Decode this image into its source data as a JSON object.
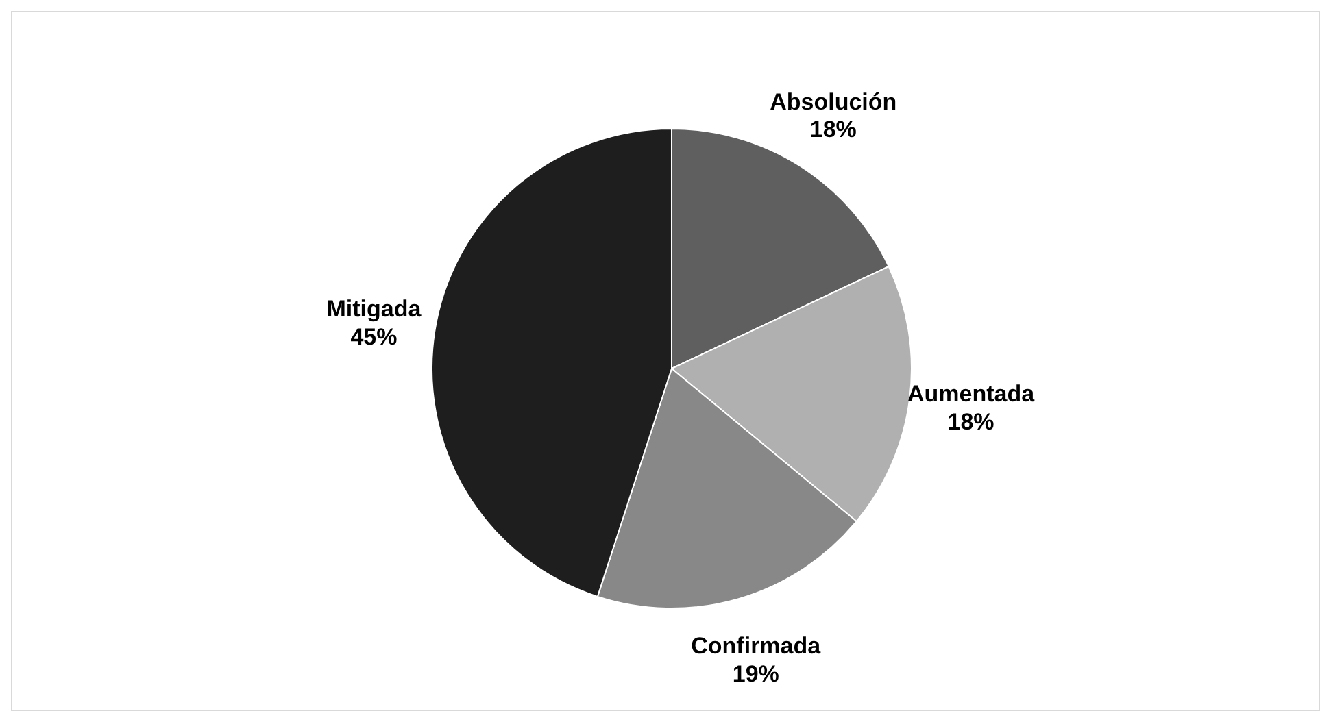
{
  "chart_data": {
    "type": "pie",
    "categories": [
      "Absolución",
      "Aumentada",
      "Confirmada",
      "Mitigada"
    ],
    "values": [
      18,
      18,
      19,
      45
    ],
    "colors": [
      "#5f5f5f",
      "#b0b0b0",
      "#888888",
      "#1e1e1e"
    ],
    "value_labels": [
      "18%",
      "18%",
      "19%",
      "45%"
    ],
    "legend": false
  }
}
